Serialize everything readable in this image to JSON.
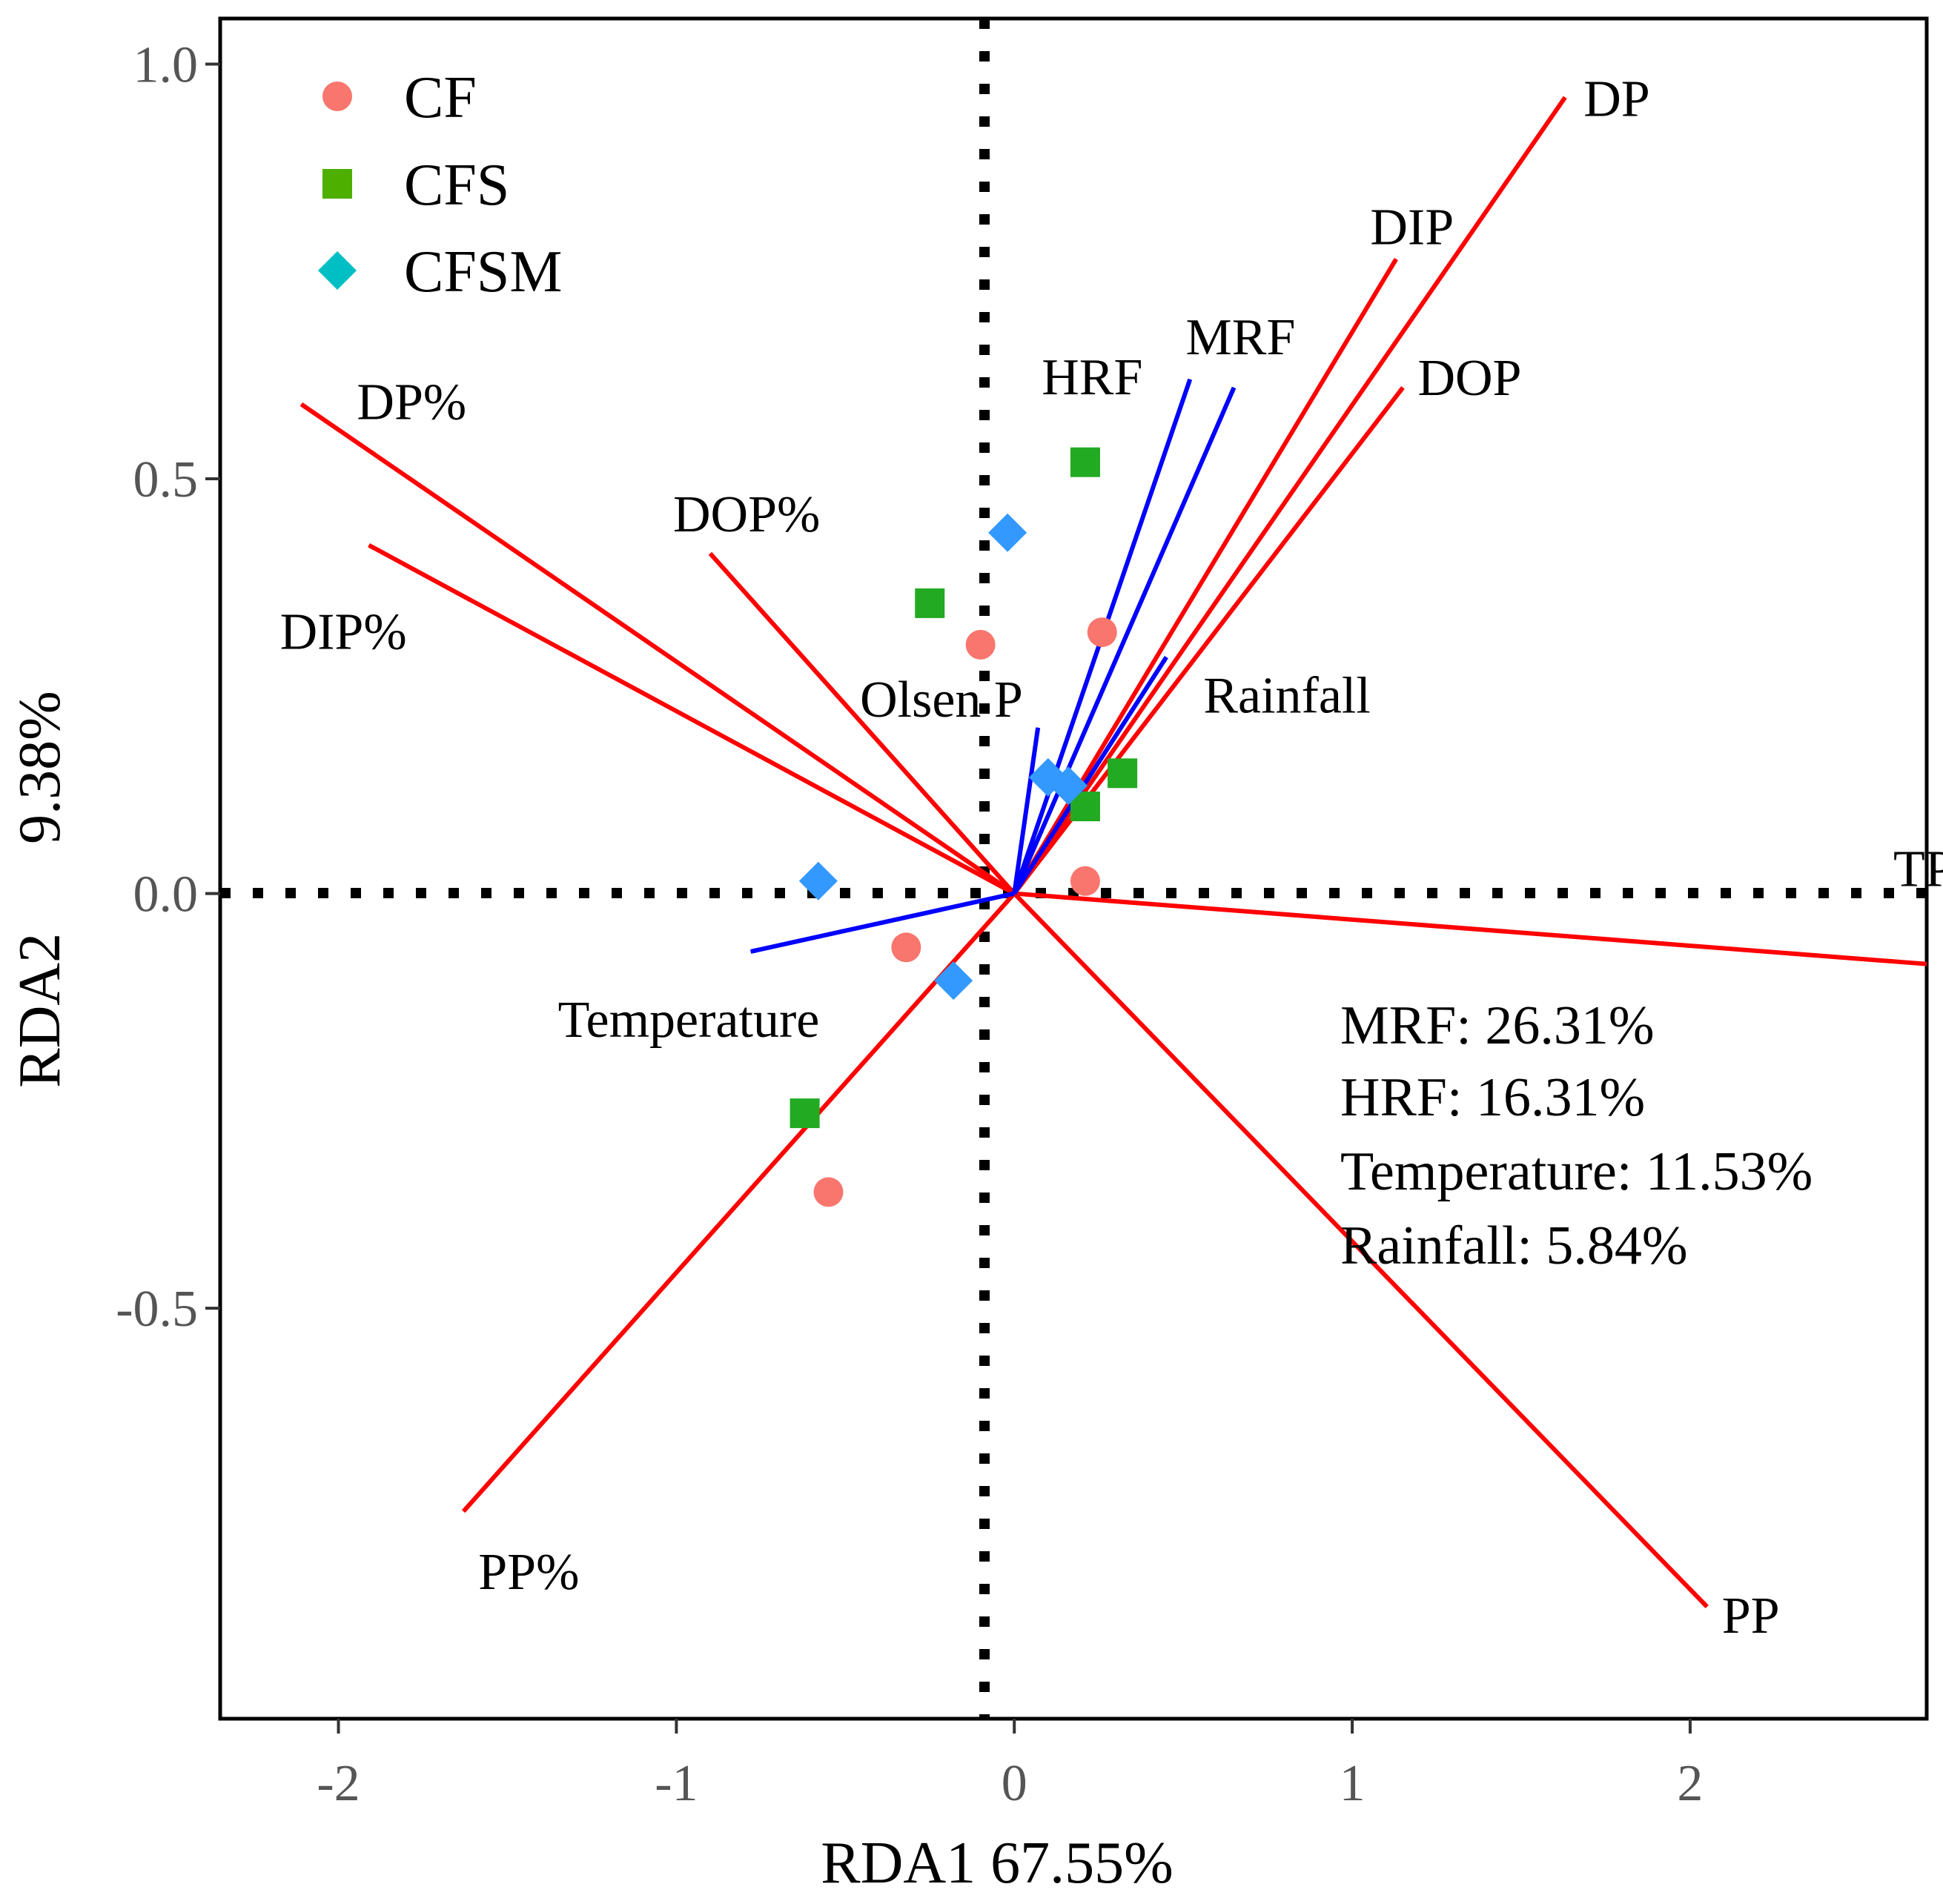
{
  "chart_data": {
    "type": "scatter",
    "subtype": "rda-biplot",
    "xlabel": "RDA1   67.55%",
    "ylabel": "RDA2      9.38%",
    "xlim": [
      -2.35,
      2.7
    ],
    "ylim": [
      -0.995,
      1.055
    ],
    "x_ticks": [
      -2,
      -1,
      0,
      1,
      2
    ],
    "y_ticks": [
      -0.5,
      0.0,
      0.5,
      1.0
    ],
    "x_tick_labels": [
      "-2",
      "-1",
      "0",
      "1",
      "2"
    ],
    "y_tick_labels": [
      "-0.5",
      "0.0",
      "0.5",
      "1.0"
    ],
    "reference_lines": {
      "x": 0,
      "y": 0,
      "style": "dotted"
    },
    "legend": {
      "position": "top-left"
    },
    "series": [
      {
        "name": "CF",
        "marker": "circle",
        "color": "#F8766D",
        "points": [
          [
            -0.1,
            0.3
          ],
          [
            0.26,
            0.315
          ],
          [
            0.21,
            0.015
          ],
          [
            -0.32,
            -0.065
          ],
          [
            -0.55,
            -0.36
          ]
        ]
      },
      {
        "name": "CFS",
        "marker": "square",
        "color": "#4DAF00",
        "points": [
          [
            0.21,
            0.52
          ],
          [
            -0.25,
            0.35
          ],
          [
            0.32,
            0.145
          ],
          [
            0.21,
            0.105
          ],
          [
            -0.62,
            -0.265
          ]
        ]
      },
      {
        "name": "CFSM",
        "marker": "diamond",
        "color": "#00BFC4",
        "points": [
          [
            -0.02,
            0.435
          ],
          [
            0.1,
            0.14
          ],
          [
            0.16,
            0.13
          ],
          [
            -0.58,
            0.015
          ],
          [
            -0.18,
            -0.105
          ]
        ]
      }
    ],
    "response_arrows": {
      "color": "#FF0000",
      "items": [
        {
          "label": "DP",
          "x": 1.63,
          "y": 0.96
        },
        {
          "label": "DIP",
          "x": 1.13,
          "y": 0.765
        },
        {
          "label": "DOP",
          "x": 1.15,
          "y": 0.61
        },
        {
          "label": "TP",
          "x": 2.7,
          "y": -0.085
        },
        {
          "label": "PP",
          "x": 2.05,
          "y": -0.86
        },
        {
          "label": "DP%",
          "x": -2.11,
          "y": 0.59
        },
        {
          "label": "DIP%",
          "x": -1.91,
          "y": 0.42
        },
        {
          "label": "DOP%",
          "x": -0.9,
          "y": 0.41
        },
        {
          "label": "PP%",
          "x": -1.63,
          "y": -0.745
        }
      ]
    },
    "explanatory_arrows": {
      "color": "#0000FF",
      "items": [
        {
          "label": "HRF",
          "x": 0.52,
          "y": 0.62
        },
        {
          "label": "MRF",
          "x": 0.65,
          "y": 0.61
        },
        {
          "label": "Rainfall",
          "x": 0.45,
          "y": 0.285
        },
        {
          "label": "Olsen P",
          "x": 0.07,
          "y": 0.2
        },
        {
          "label": "Temperature",
          "x": -0.78,
          "y": -0.07
        }
      ]
    },
    "annotations": [
      "MRF: 26.31%",
      "HRF: 16.31%",
      "Temperature: 11.53%",
      "Rainfall: 5.84%"
    ]
  }
}
